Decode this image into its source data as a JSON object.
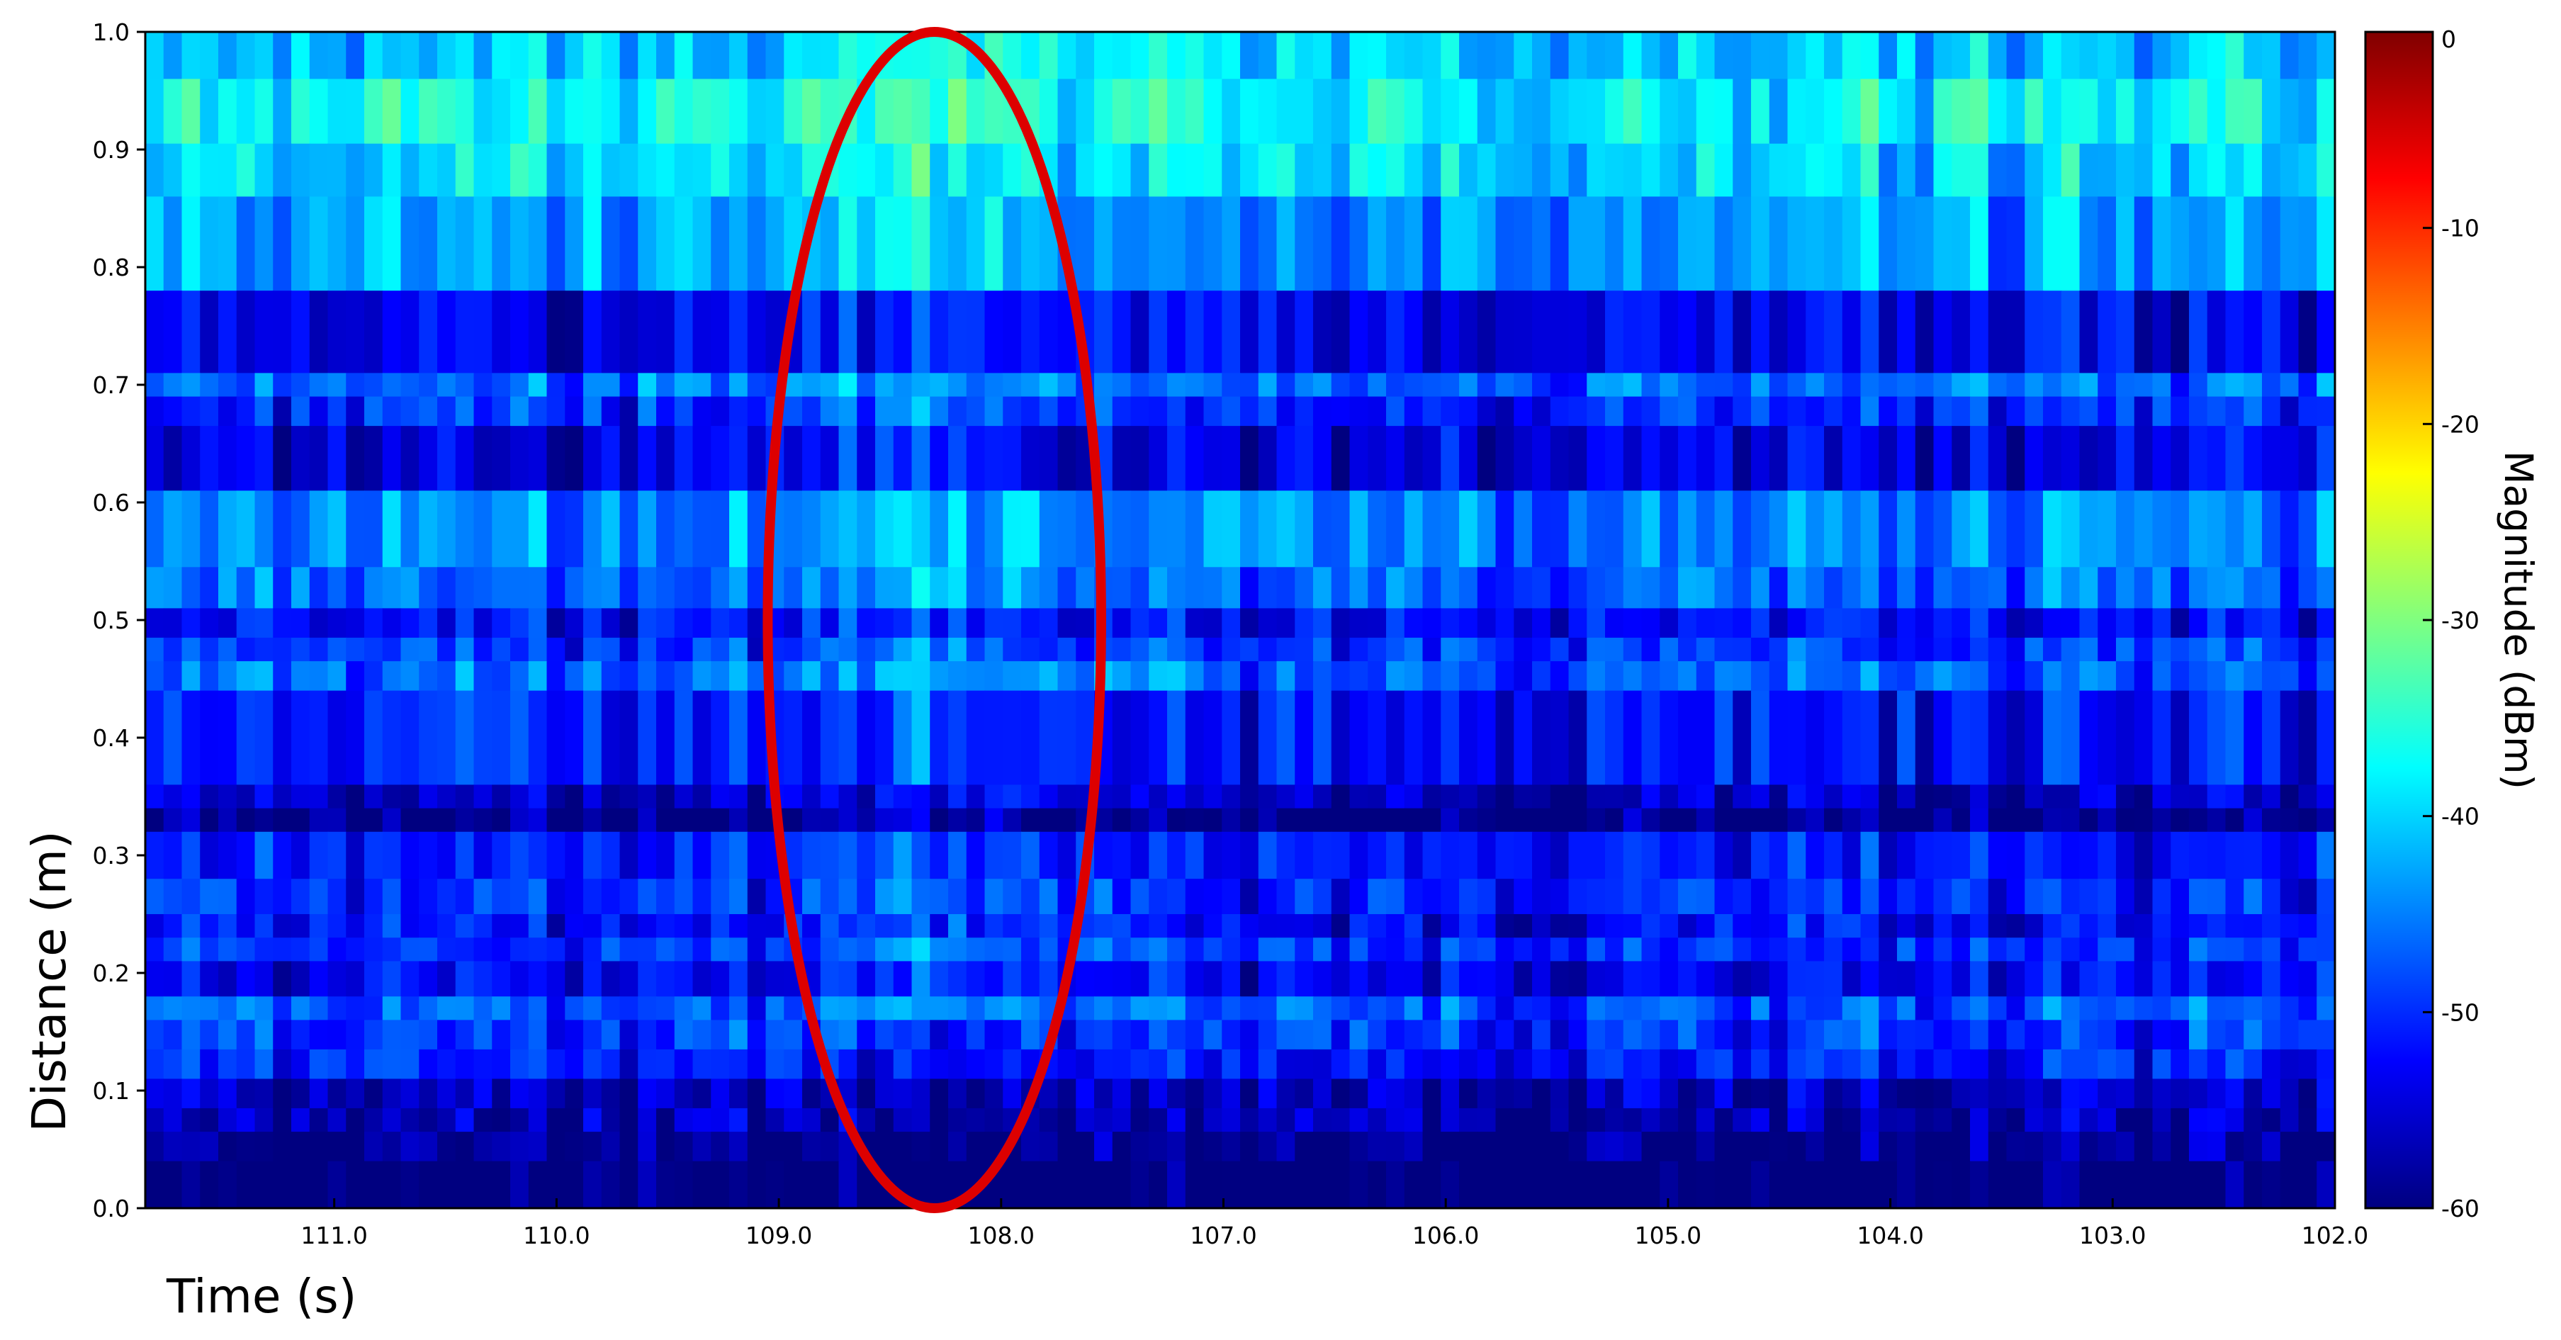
{
  "chart_data": {
    "type": "heatmap",
    "xlabel": "Time (s)",
    "ylabel": "Distance (m)",
    "colorbar_label": "Magnitude (dBm)",
    "colorscale": "jet",
    "x_range": [
      111.85,
      102.0
    ],
    "x_reversed": true,
    "x_ticks": [
      111.0,
      110.0,
      109.0,
      108.0,
      107.0,
      106.0,
      105.0,
      104.0,
      103.0,
      102.0
    ],
    "x_tick_labels": [
      "111.0",
      "110.0",
      "109.0",
      "108.0",
      "107.0",
      "106.0",
      "105.0",
      "104.0",
      "103.0",
      "102.0"
    ],
    "y_range": [
      0.0,
      1.0
    ],
    "y_ticks": [
      0.0,
      0.1,
      0.2,
      0.3,
      0.4,
      0.5,
      0.6,
      0.7,
      0.8,
      0.9,
      1.0
    ],
    "y_tick_labels": [
      "0.0",
      "0.1",
      "0.2",
      "0.3",
      "0.4",
      "0.5",
      "0.6",
      "0.7",
      "0.8",
      "0.9",
      "1.0"
    ],
    "colorbar_range": [
      -60,
      0
    ],
    "colorbar_ticks": [
      0,
      -10,
      -20,
      -30,
      -40,
      -50,
      -60
    ],
    "colorbar_tick_labels": [
      "0",
      "-10",
      "-20",
      "-30",
      "-40",
      "-50",
      "-60"
    ],
    "grid": false,
    "bin_edges": [
      1.0,
      0.96,
      0.905,
      0.86,
      0.78,
      0.71,
      0.69,
      0.665,
      0.61,
      0.545,
      0.51,
      0.485,
      0.465,
      0.44,
      0.36,
      0.34,
      0.32,
      0.28,
      0.25,
      0.23,
      0.21,
      0.18,
      0.16,
      0.135,
      0.11,
      0.085,
      0.065,
      0.04,
      0.0
    ],
    "band_levels_dBm": [
      -40,
      -37,
      -39,
      -43,
      -53,
      -46,
      -50,
      -54,
      -44,
      -46,
      -52,
      -49,
      -46,
      -51,
      -56,
      -60,
      -51,
      -50,
      -52,
      -49,
      -53,
      -47,
      -49,
      -51,
      -56,
      -57,
      -59,
      -62
    ],
    "cell_variability_dBm": 4,
    "annotation": {
      "shape": "ellipse",
      "color": "#dd0000",
      "center_time_s": 108.3,
      "center_distance_m": 0.5,
      "half_width_s": 0.75,
      "half_height_m": 0.5
    }
  }
}
